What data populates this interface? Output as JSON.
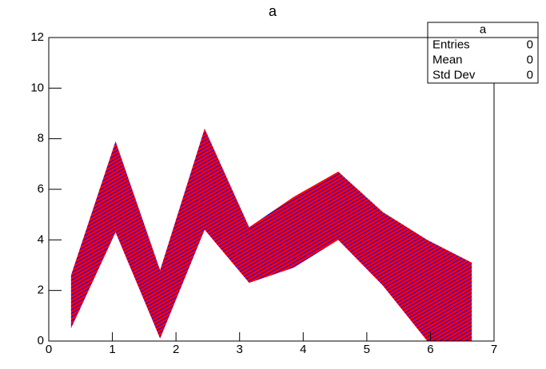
{
  "chart_data": {
    "type": "area",
    "title": "a",
    "x": [
      0.35,
      1.05,
      1.75,
      2.45,
      3.15,
      3.85,
      4.55,
      5.25,
      5.95,
      6.65
    ],
    "upper": [
      2.6,
      7.9,
      2.8,
      8.4,
      4.5,
      5.7,
      6.7,
      5.1,
      4.0,
      3.1
    ],
    "lower": [
      0.5,
      4.3,
      0.1,
      4.4,
      2.3,
      2.9,
      4.0,
      2.2,
      0.0,
      0.0
    ],
    "hatch_colors": [
      "#ff0000",
      "#0000ff"
    ],
    "xlim": [
      0,
      7
    ],
    "xticks": [
      0,
      1,
      2,
      3,
      4,
      5,
      6,
      7
    ],
    "ylim": [
      0,
      12
    ],
    "yticks": [
      0,
      2,
      4,
      6,
      8,
      10,
      12
    ],
    "stats": {
      "title": "a",
      "rows": [
        [
          "Entries",
          0
        ],
        [
          "Mean",
          0
        ],
        [
          "Std Dev",
          0
        ]
      ]
    }
  }
}
